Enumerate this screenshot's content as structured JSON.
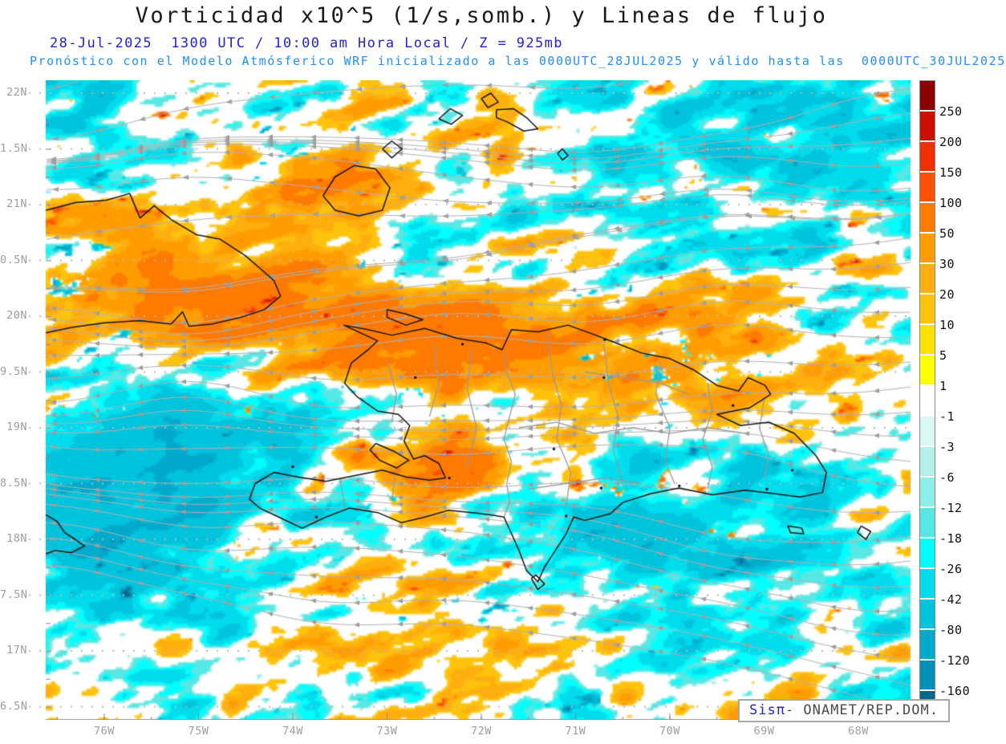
{
  "header": {
    "title": "Vorticidad x10^5 (1/s,somb.) y Lineas de flujo",
    "title_color": "#1a1a1a",
    "datetime_line": "28-Jul-2025  1300 UTC / 10:00 am Hora Local / Z = 925mb",
    "datetime_color": "#2323cd",
    "forecast_line": "Pronóstico con el Modelo Atmósferico WRF inicializado a las 0000UTC_28JUL2025 y válido hasta las  0000UTC_30JUL2025",
    "forecast_color": "#1e90ff"
  },
  "map": {
    "axis_label_color": "#9e9e9e",
    "lat_labels": [
      "22N",
      "1.5N",
      "21N",
      "0.5N",
      "20N",
      "9.5N",
      "19N",
      "8.5N",
      "18N",
      "7.5N",
      "17N",
      "6.5N"
    ],
    "lon_labels": [
      "76W",
      "75W",
      "74W",
      "73W",
      "72W",
      "71W",
      "70W",
      "69W",
      "68W"
    ],
    "streamline_color": "#b2b2b2",
    "arrow_color": "#9c9c9c",
    "gridline_color": "#b8b8b8",
    "coastline_color": "#141414",
    "border_color": "#999999"
  },
  "colorbar": {
    "label_color": "#111111",
    "levels": [
      250,
      200,
      150,
      100,
      50,
      30,
      20,
      10,
      5,
      1,
      -1,
      -3,
      -6,
      -12,
      -18,
      -26,
      -42,
      -80,
      -120,
      -160
    ],
    "colors": [
      "#8b0000",
      "#cd0e00",
      "#f03000",
      "#ff5200",
      "#ff7a00",
      "#ff9c00",
      "#ffae10",
      "#ffc30b",
      "#ffe000",
      "#ffff00",
      "#ffffff",
      "#d9f7f3",
      "#b4f0ea",
      "#8ceee8",
      "#55e8e4",
      "#00ffff",
      "#00dcec",
      "#00c3dc",
      "#00aacc",
      "#0091bb",
      "#00688b"
    ]
  },
  "watermark": {
    "brand": "Sisπ",
    "brand_color": "#2323cd",
    "rest": "- ONAMET/REP.DOM.",
    "rest_color": "#4a4a4a"
  }
}
